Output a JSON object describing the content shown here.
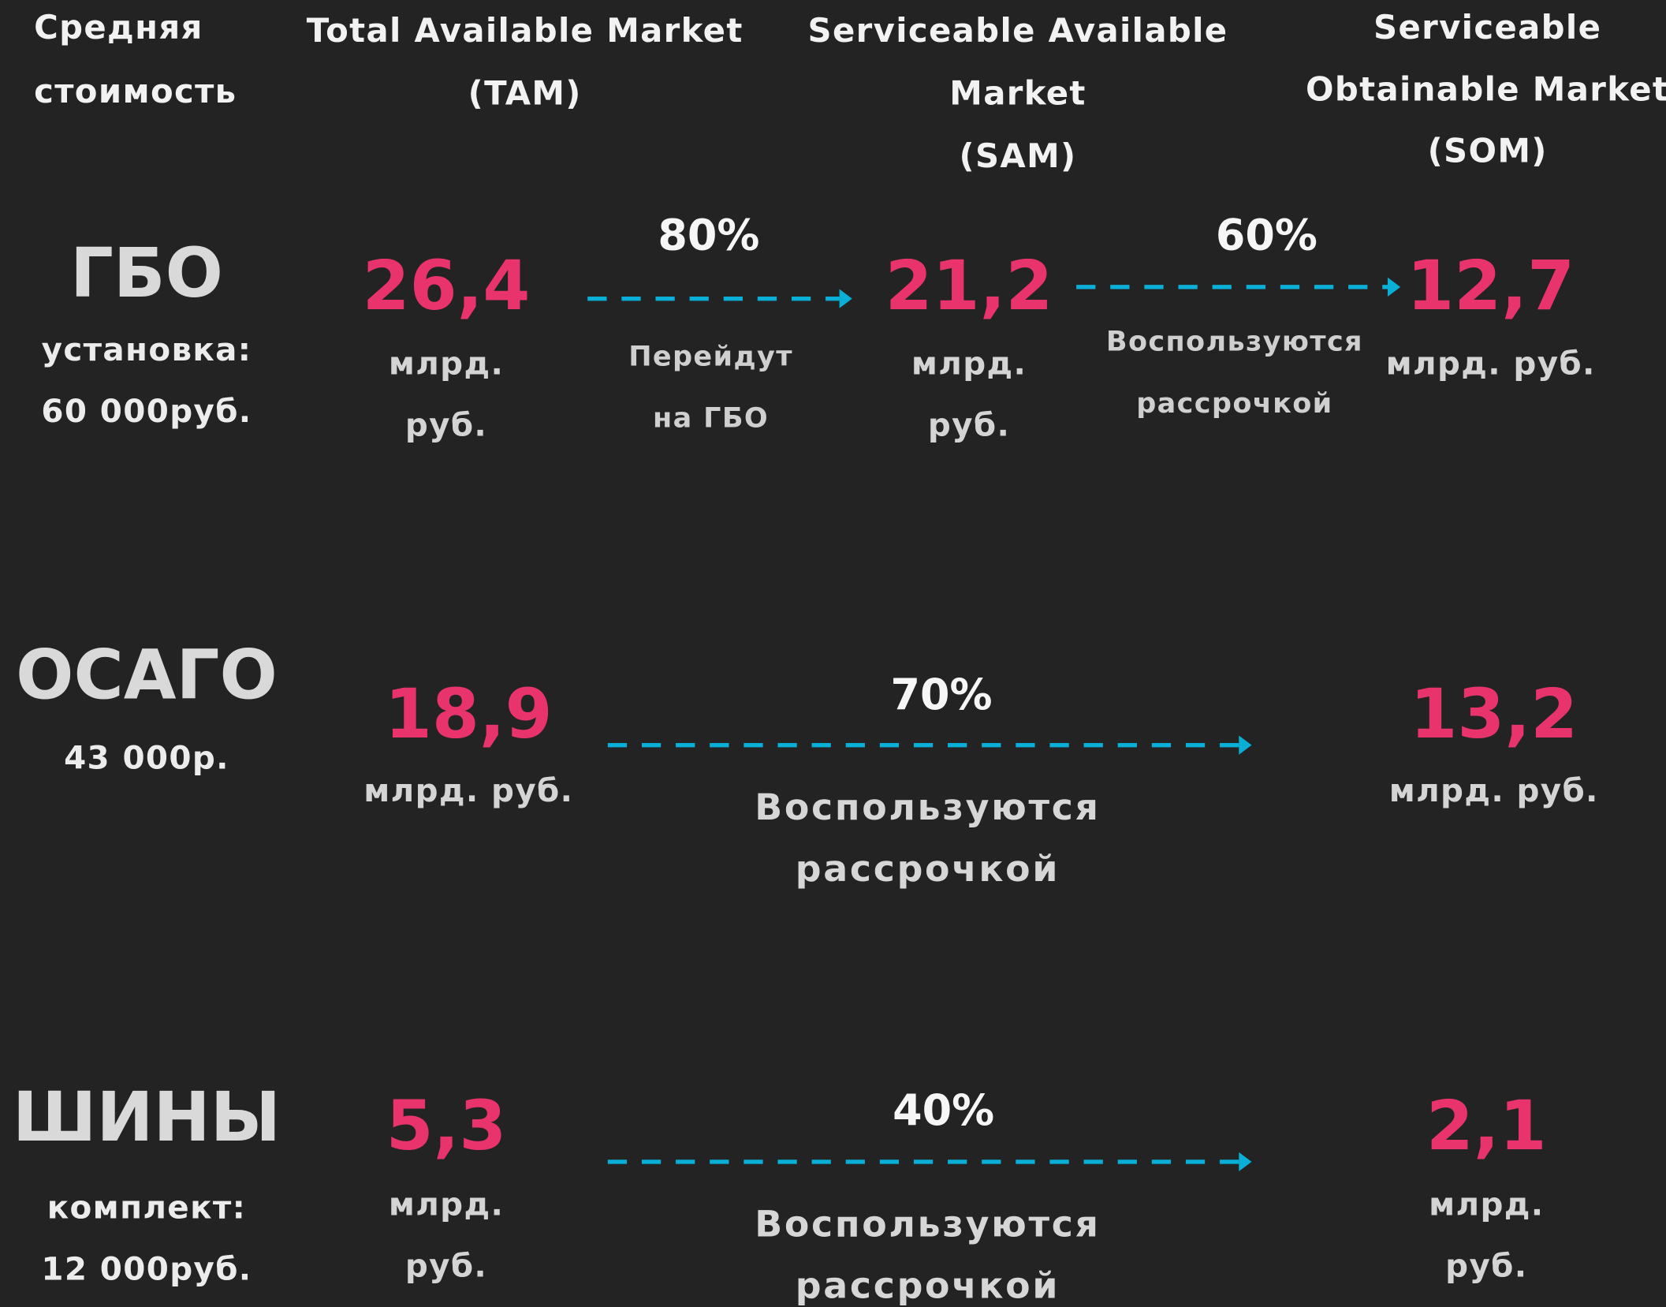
{
  "header": {
    "cost": [
      "Средняя",
      "стоимость"
    ],
    "tam": [
      "Total Available Market",
      "(TAM)"
    ],
    "sam": [
      "Serviceable Available",
      "Market",
      "(SAM)"
    ],
    "som": [
      "Serviceable",
      "Obtainable Market",
      "(SOM)"
    ]
  },
  "rows": [
    {
      "name": "ГБО",
      "cost": [
        "установка:",
        "60 000руб."
      ],
      "tam": {
        "value": "26,4",
        "unit": [
          "млрд.",
          "руб."
        ]
      },
      "step1": {
        "percent": "80%",
        "note": [
          "Перейдут",
          "на ГБО"
        ]
      },
      "sam": {
        "value": "21,2",
        "unit": [
          "млрд.",
          "руб."
        ]
      },
      "step2": {
        "percent": "60%",
        "note": [
          "Воспользуются",
          "рассрочкой"
        ]
      },
      "som": {
        "value": "12,7",
        "unit": [
          "млрд. руб."
        ]
      }
    },
    {
      "name": "ОСАГО",
      "cost": [
        "43 000р."
      ],
      "tam": {
        "value": "18,9",
        "unit": [
          "млрд. руб."
        ]
      },
      "step1": {
        "percent": "70%",
        "note": [
          "Воспользуются",
          "рассрочкой"
        ]
      },
      "som": {
        "value": "13,2",
        "unit": [
          "млрд. руб."
        ]
      }
    },
    {
      "name": "ШИНЫ",
      "cost": [
        "комплект:",
        "12 000руб."
      ],
      "tam": {
        "value": "5,3",
        "unit": [
          "млрд.",
          "руб."
        ]
      },
      "step1": {
        "percent": "40%",
        "note": [
          "Воспользуются",
          "рассрочкой"
        ]
      },
      "som": {
        "value": "2,1",
        "unit": [
          "млрд.",
          "руб."
        ]
      }
    }
  ]
}
